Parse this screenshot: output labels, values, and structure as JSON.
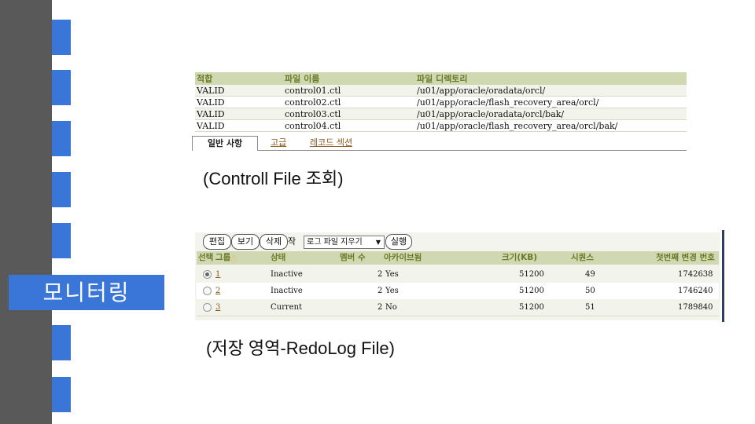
{
  "slide": {
    "title": "모니터링",
    "accent_color": "#3a75d8",
    "sidebar_color": "#595959"
  },
  "control_files": {
    "columns": [
      "적합",
      "파일 이름",
      "파일 디렉토리"
    ],
    "rows": [
      [
        "VALID",
        "control01.ctl",
        "/u01/app/oracle/oradata/orcl/"
      ],
      [
        "VALID",
        "control02.ctl",
        "/u01/app/oracle/flash_recovery_area/orcl/"
      ],
      [
        "VALID",
        "control03.ctl",
        "/u01/app/oracle/oradata/orcl/bak/"
      ],
      [
        "VALID",
        "control04.ctl",
        "/u01/app/oracle/flash_recovery_area/orcl/bak/"
      ]
    ],
    "tabs": [
      "일반 사항",
      "고급",
      "레코드 섹션"
    ],
    "caption": "(Controll File 조회)"
  },
  "redo_log": {
    "toolbar": {
      "edit": "편집",
      "view": "보기",
      "delete": "삭제",
      "action_label": "작업",
      "action_selected": "로그 파일 지우기",
      "run": "실행"
    },
    "columns": [
      "선택",
      "그룹",
      "상태",
      "멤버 수",
      "아카이브됨",
      "크기(KB)",
      "시퀀스",
      "첫번째 변경 번호"
    ],
    "rows": [
      {
        "selected": true,
        "group": "1",
        "status": "Inactive",
        "members": "2",
        "archived": "Yes",
        "size": "51200",
        "sequence": "49",
        "first_change": "1742638"
      },
      {
        "selected": false,
        "group": "2",
        "status": "Inactive",
        "members": "2",
        "archived": "Yes",
        "size": "51200",
        "sequence": "50",
        "first_change": "1746240"
      },
      {
        "selected": false,
        "group": "3",
        "status": "Current",
        "members": "2",
        "archived": "No",
        "size": "51200",
        "sequence": "51",
        "first_change": "1789840"
      }
    ],
    "caption": "(저장 영역-RedoLog File)"
  }
}
